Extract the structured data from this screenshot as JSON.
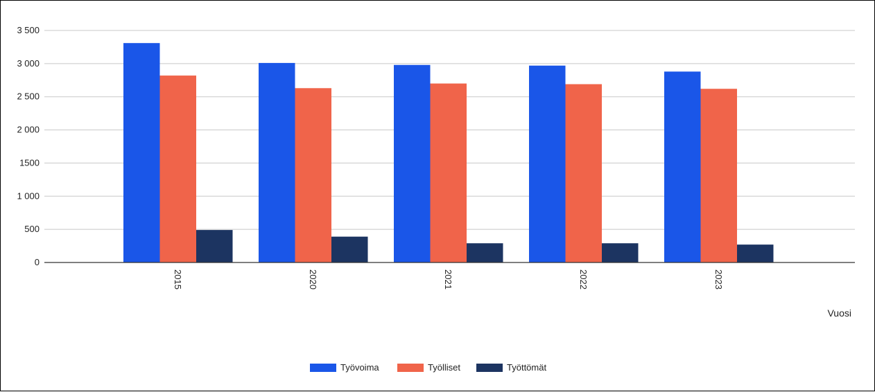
{
  "chart_data": {
    "type": "bar",
    "title": "",
    "xlabel": "Vuosi",
    "ylabel": "",
    "categories": [
      "2015",
      "2020",
      "2021",
      "2022",
      "2023"
    ],
    "series": [
      {
        "name": "Työvoima",
        "color": "#1a56e8",
        "values": [
          3310,
          3010,
          2980,
          2970,
          2880
        ]
      },
      {
        "name": "Työlliset",
        "color": "#f0644a",
        "values": [
          2820,
          2630,
          2700,
          2690,
          2620
        ]
      },
      {
        "name": "Työttömät",
        "color": "#1c3461",
        "values": [
          490,
          390,
          290,
          290,
          270
        ]
      }
    ],
    "ylim": [
      0,
      3500
    ],
    "yticks": [
      0,
      500,
      1000,
      1500,
      2000,
      2500,
      3000,
      3500
    ],
    "ytick_labels": [
      "0",
      "500",
      "1 000",
      "1500",
      "2 000",
      "2 500",
      "3 000",
      "3 500"
    ],
    "grid": true,
    "legend_position": "bottom"
  }
}
